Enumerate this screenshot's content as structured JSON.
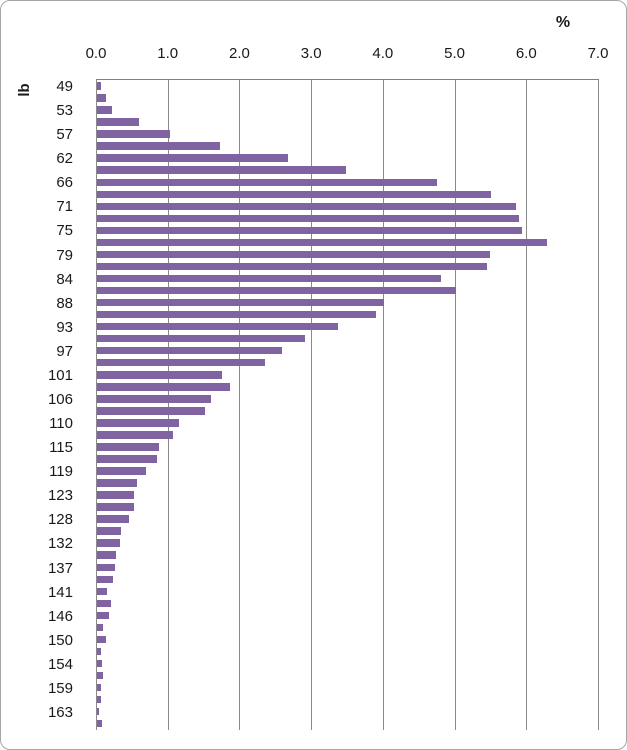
{
  "chart_data": {
    "type": "bar",
    "orientation": "horizontal",
    "title": "",
    "xlabel": "%",
    "ylabel": "lb",
    "xlim": [
      0.0,
      7.0
    ],
    "x_ticks": [
      "0.0",
      "1.0",
      "2.0",
      "3.0",
      "4.0",
      "5.0",
      "6.0",
      "7.0"
    ],
    "grid": "vertical-gridlines-on",
    "legend": "none",
    "bar_color": "#8064A2",
    "gridline_color": "#8a8a8a",
    "axis_line_color": "#808080",
    "categories": [
      "49",
      "",
      "53",
      "",
      "57",
      "",
      "62",
      "",
      "66",
      "",
      "71",
      "",
      "75",
      "",
      "79",
      "",
      "84",
      "",
      "88",
      "",
      "93",
      "",
      "97",
      "",
      "101",
      "",
      "106",
      "",
      "110",
      "",
      "115",
      "",
      "119",
      "",
      "123",
      "",
      "128",
      "",
      "132",
      "",
      "137",
      "",
      "141",
      "",
      "146",
      "",
      "150",
      "",
      "154",
      "",
      "159",
      "",
      "163",
      ""
    ],
    "values": [
      0.06,
      0.12,
      0.21,
      0.58,
      1.02,
      1.72,
      2.67,
      3.47,
      4.74,
      5.49,
      5.84,
      5.88,
      5.93,
      6.28,
      5.48,
      5.44,
      4.79,
      5.01,
      4.0,
      3.89,
      3.36,
      2.9,
      2.58,
      2.34,
      1.74,
      1.86,
      1.59,
      1.51,
      1.15,
      1.06,
      0.87,
      0.84,
      0.69,
      0.56,
      0.52,
      0.52,
      0.44,
      0.33,
      0.32,
      0.26,
      0.25,
      0.22,
      0.14,
      0.19,
      0.17,
      0.09,
      0.13,
      0.05,
      0.07,
      0.08,
      0.06,
      0.06,
      0.03,
      0.07
    ]
  }
}
